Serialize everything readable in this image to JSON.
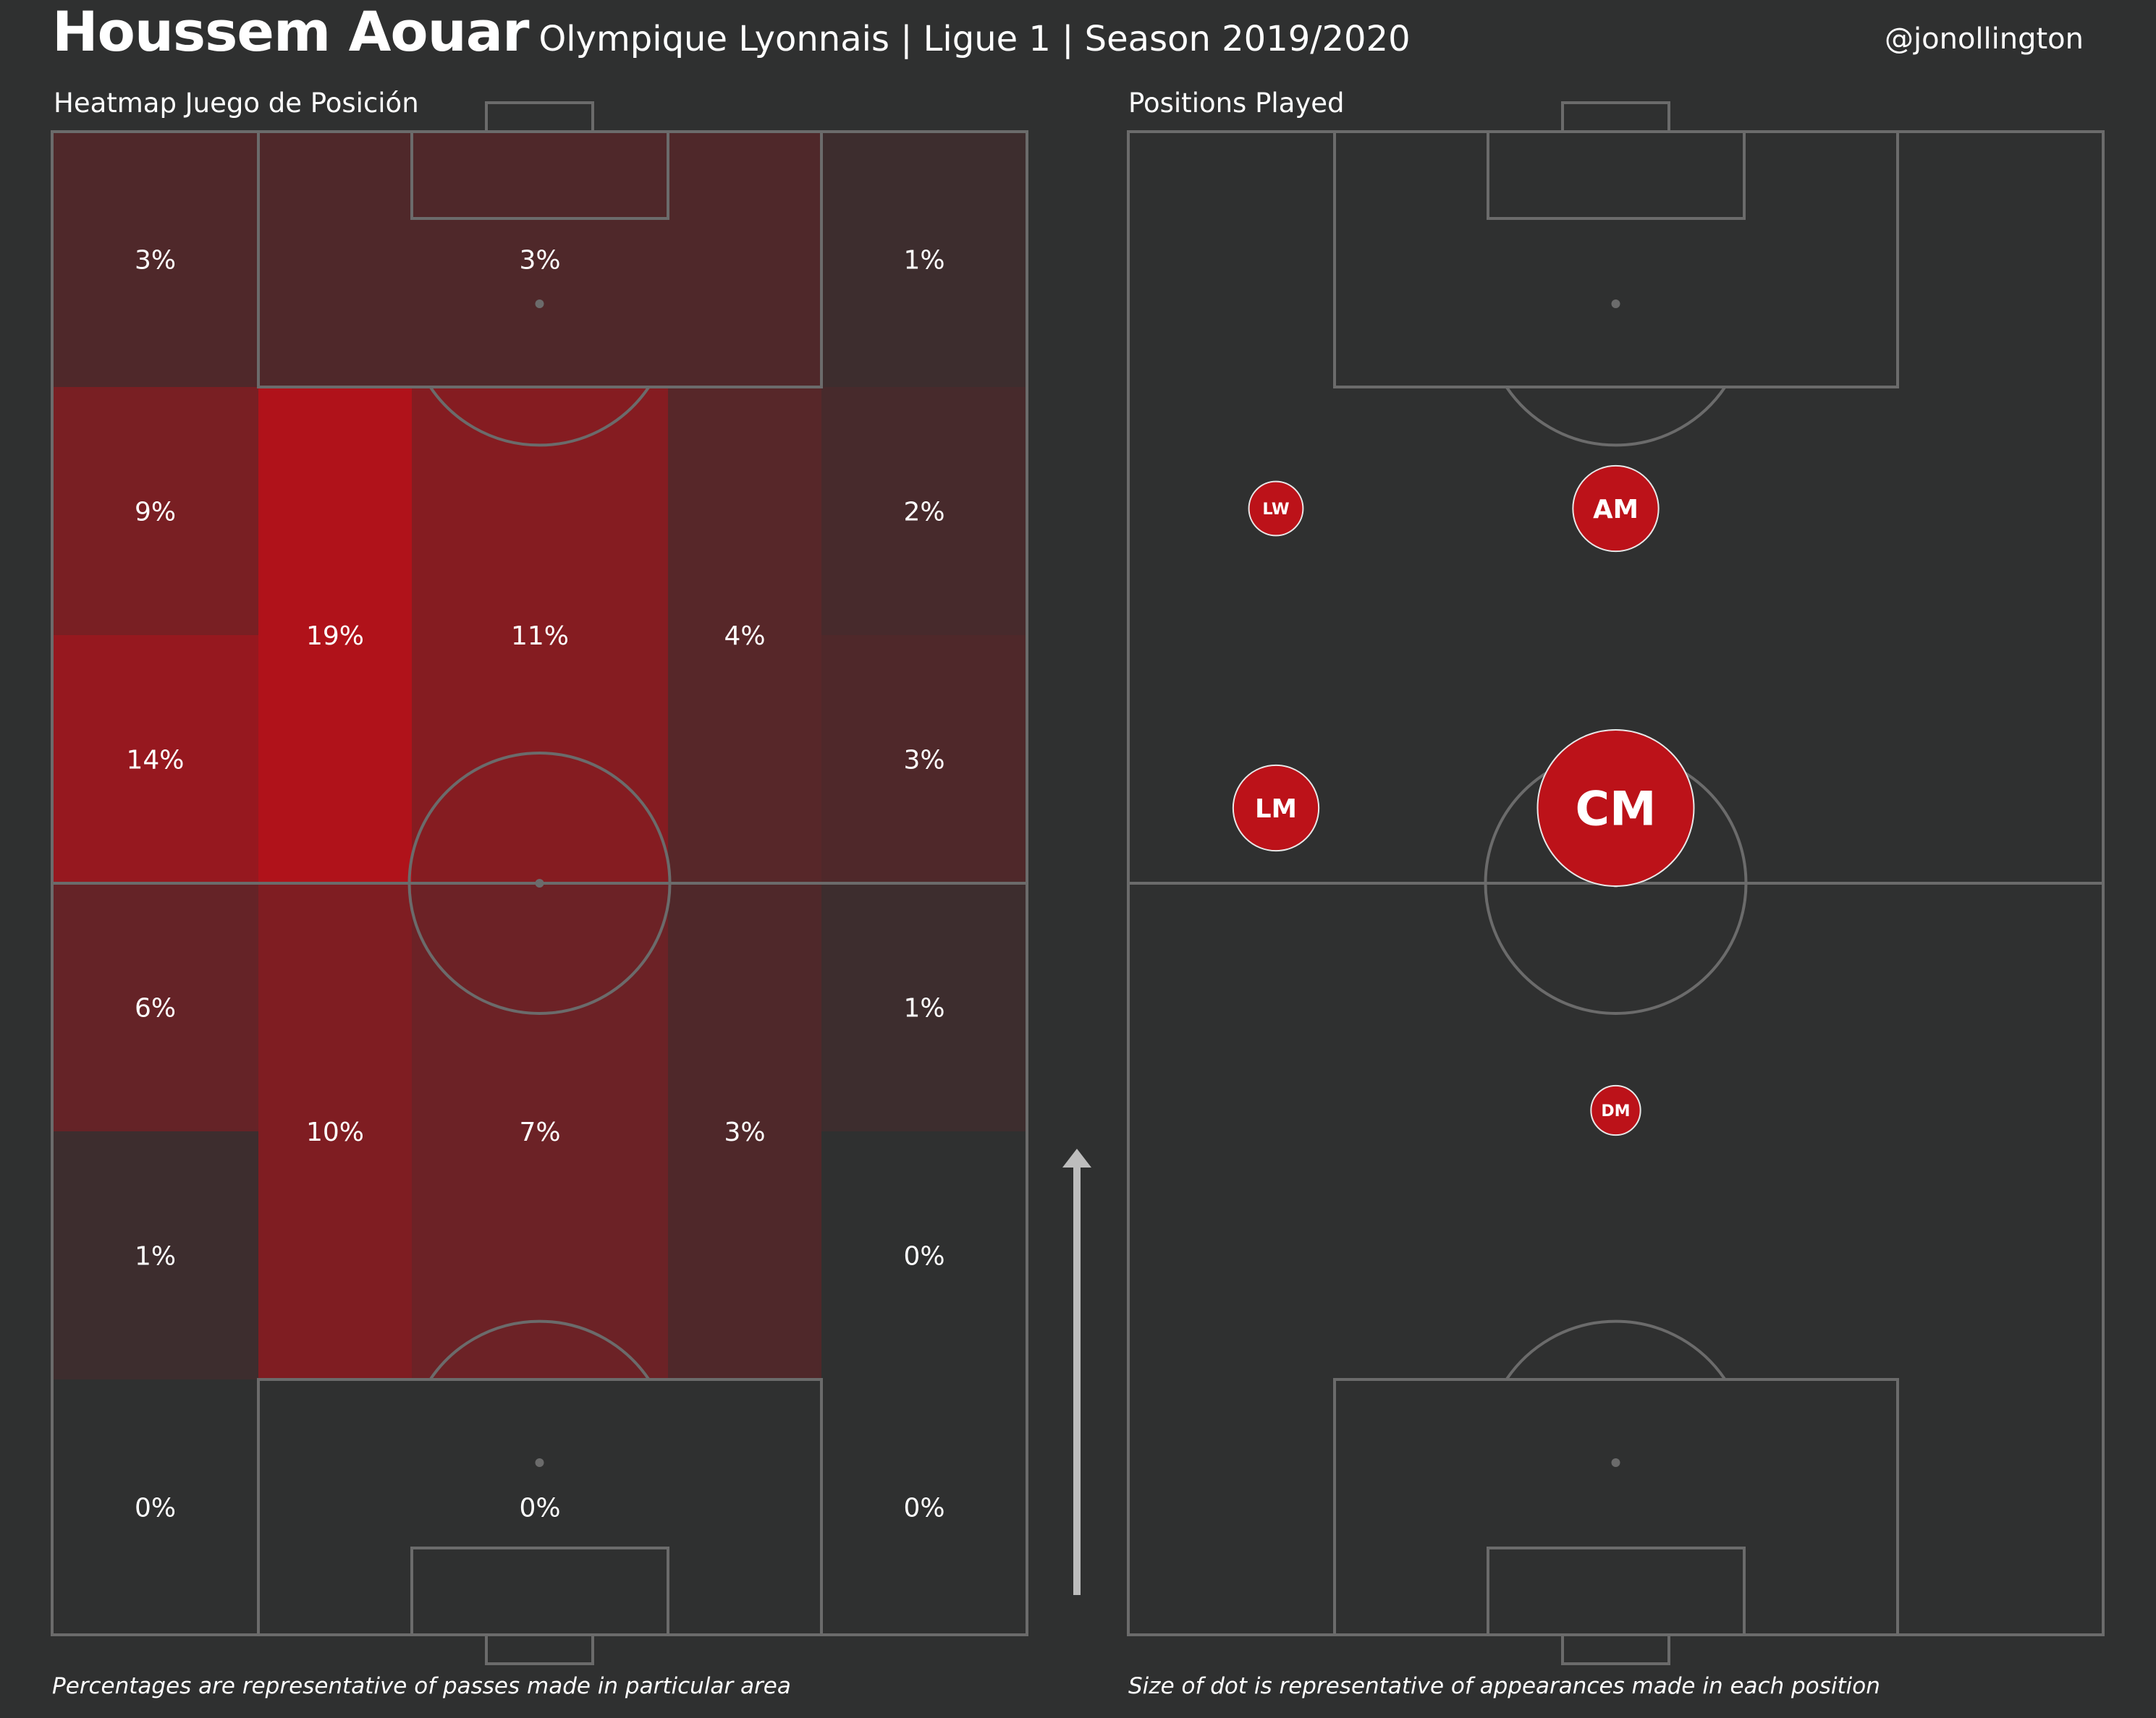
{
  "header": {
    "player_name": "Houssem Aouar",
    "subtitle": "Olympique Lyonnais | Ligue 1 | Season 2019/2020",
    "credit": "@jonollington"
  },
  "colors": {
    "background": "#2f3030",
    "pitch_lines": "#6b6b6b",
    "heat_low": "#2f3030",
    "heat_high": "#b0121a",
    "dot_fill": "#bc1219",
    "dot_stroke": "#e8e8e8"
  },
  "left_panel": {
    "title": "Heatmap Juego de Posición",
    "caption": "Percentages are representative of passes made in particular area"
  },
  "right_panel": {
    "title": "Positions Played",
    "caption": "Size of dot is representative of appearances made in each position"
  },
  "chart_data": [
    {
      "type": "heatmap",
      "title": "Heatmap Juego de Posición",
      "unit": "%",
      "attack_direction": "up",
      "zones": [
        {
          "zone": "left-final-third",
          "value": 3,
          "label": "3%"
        },
        {
          "zone": "central-final-third",
          "value": 3,
          "label": "3%"
        },
        {
          "zone": "right-final-third",
          "value": 1,
          "label": "1%"
        },
        {
          "zone": "left-attacking-wing-upper",
          "value": 9,
          "label": "9%"
        },
        {
          "zone": "left-attacking-wing-lower",
          "value": 14,
          "label": "14%"
        },
        {
          "zone": "left-attacking-halfspace",
          "value": 19,
          "label": "19%"
        },
        {
          "zone": "central-attacking-midfield",
          "value": 11,
          "label": "11%"
        },
        {
          "zone": "right-attacking-halfspace",
          "value": 4,
          "label": "4%"
        },
        {
          "zone": "right-attacking-wing-upper",
          "value": 2,
          "label": "2%"
        },
        {
          "zone": "right-attacking-wing-lower",
          "value": 3,
          "label": "3%"
        },
        {
          "zone": "left-defensive-wing-upper",
          "value": 6,
          "label": "6%"
        },
        {
          "zone": "left-defensive-wing-lower",
          "value": 1,
          "label": "1%"
        },
        {
          "zone": "left-defensive-halfspace",
          "value": 10,
          "label": "10%"
        },
        {
          "zone": "central-defensive-midfield",
          "value": 7,
          "label": "7%"
        },
        {
          "zone": "right-defensive-halfspace",
          "value": 3,
          "label": "3%"
        },
        {
          "zone": "right-defensive-wing-upper",
          "value": 1,
          "label": "1%"
        },
        {
          "zone": "right-defensive-wing-lower",
          "value": 0,
          "label": "0%"
        },
        {
          "zone": "left-defensive-third",
          "value": 0,
          "label": "0%"
        },
        {
          "zone": "central-defensive-third",
          "value": 0,
          "label": "0%"
        },
        {
          "zone": "right-defensive-third",
          "value": 0,
          "label": "0%"
        }
      ]
    },
    {
      "type": "scatter",
      "title": "Positions Played",
      "encoding": "dot size = appearances in position",
      "positions": [
        {
          "label": "LW",
          "relative_size": 0.12
        },
        {
          "label": "AM",
          "relative_size": 0.3
        },
        {
          "label": "LM",
          "relative_size": 0.3
        },
        {
          "label": "CM",
          "relative_size": 1.0
        },
        {
          "label": "DM",
          "relative_size": 0.1
        }
      ]
    }
  ]
}
